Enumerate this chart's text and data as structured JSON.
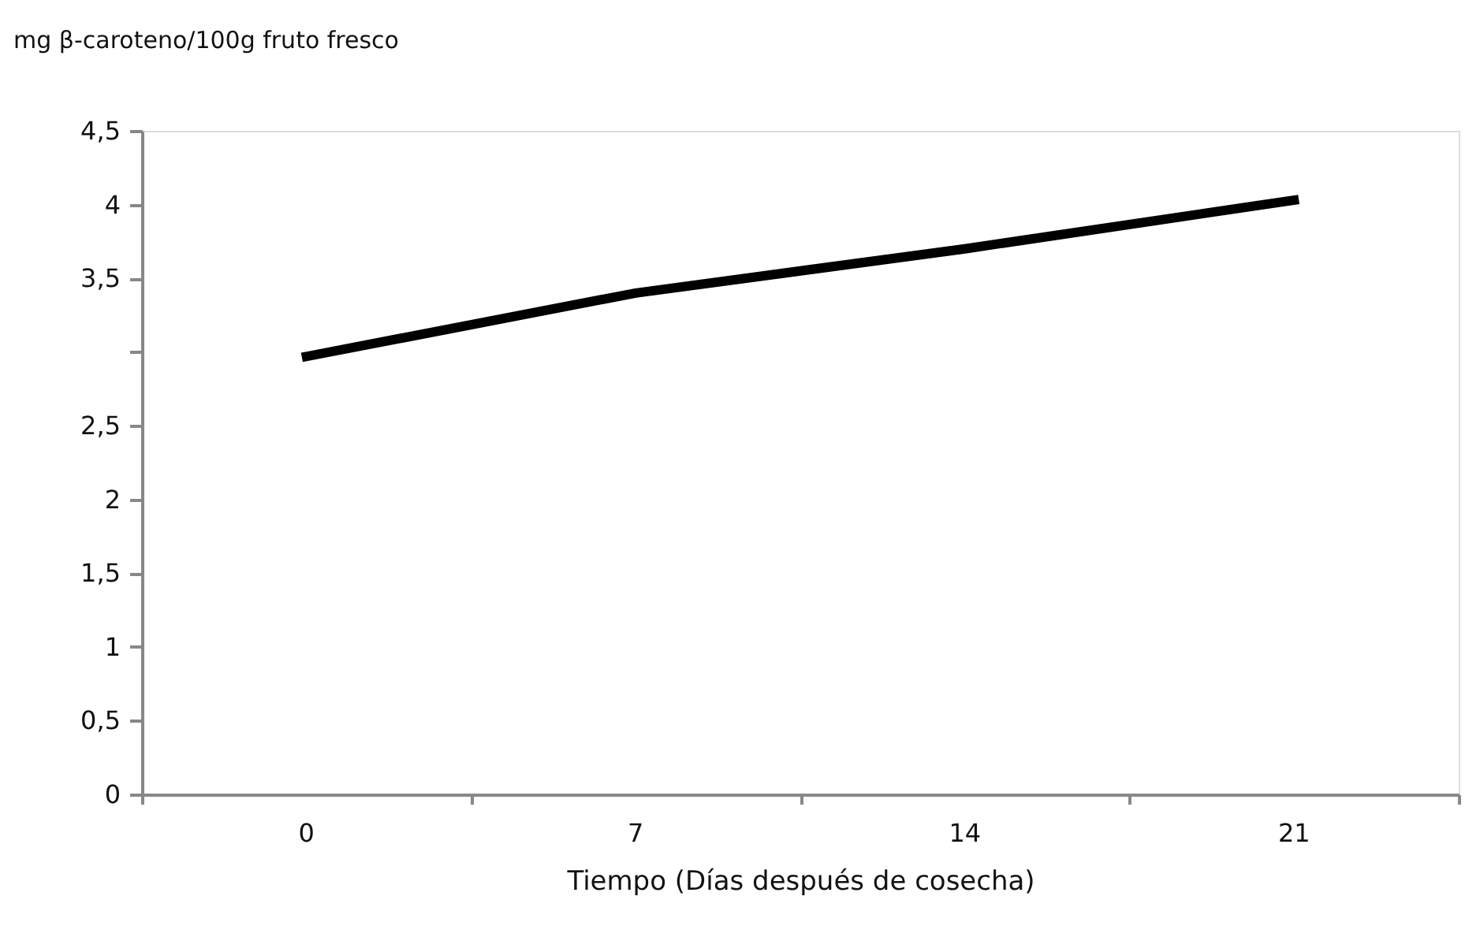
{
  "chart_data": {
    "type": "line",
    "ylabel": "mg β-caroteno/100g fruto fresco",
    "xlabel": "Tiempo (Días después de cosecha)",
    "categories": [
      "0",
      "7",
      "14",
      "21"
    ],
    "series": [
      {
        "color": "#000000",
        "values": [
          2.97,
          3.4,
          3.7,
          4.03
        ]
      }
    ],
    "ylim": [
      0,
      4.5
    ],
    "yticks": [
      {
        "value": 0,
        "label": "0"
      },
      {
        "value": 0.5,
        "label": "0,5"
      },
      {
        "value": 1,
        "label": "1"
      },
      {
        "value": 1.5,
        "label": "1,5"
      },
      {
        "value": 2,
        "label": "2"
      },
      {
        "value": 2.5,
        "label": "2,5"
      },
      {
        "value": 3,
        "label": null
      },
      {
        "value": 3.5,
        "label": "3,5"
      },
      {
        "value": 4,
        "label": "4"
      },
      {
        "value": 4.5,
        "label": "4,5"
      }
    ],
    "grid": false,
    "legend": false,
    "marker": "none",
    "line_style": "solid"
  }
}
